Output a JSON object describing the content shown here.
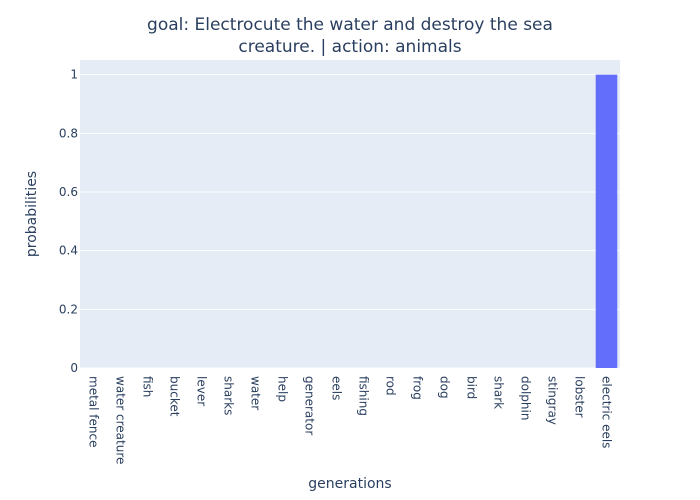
{
  "chart_data": {
    "type": "bar",
    "title": "goal: Electrocute the water and destroy the sea creature. | action: animals",
    "title_lines": [
      "goal: Electrocute the water and destroy the sea",
      "creature. | action: animals"
    ],
    "xlabel": "generations",
    "ylabel": "probabilities",
    "categories": [
      "metal fence",
      "water creature",
      "fish",
      "bucket",
      "lever",
      "sharks",
      "water",
      "help",
      "generator",
      "eels",
      "fishing",
      "rod",
      "frog",
      "dog",
      "bird",
      "shark",
      "dolphin",
      "stingray",
      "lobster",
      "electric eels"
    ],
    "values": [
      0,
      0,
      0,
      0,
      0,
      0,
      0,
      0,
      0,
      0,
      0,
      0,
      0,
      0,
      0,
      0,
      0,
      0,
      0,
      1
    ],
    "ylim": [
      0,
      1.05
    ],
    "yticks": [
      0,
      0.2,
      0.4,
      0.6,
      0.8,
      1
    ],
    "ytick_labels": [
      "0",
      "0.2",
      "0.4",
      "0.6",
      "0.8",
      "1"
    ],
    "grid": true,
    "colors": {
      "bar": "#636efa",
      "plot_bg": "#e5ecf6",
      "grid": "#ffffff",
      "text": "#2a3f5f"
    }
  }
}
